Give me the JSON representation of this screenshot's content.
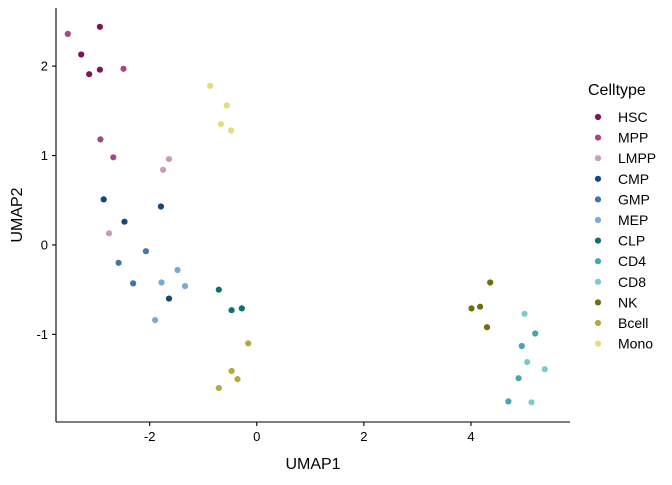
{
  "chart_data": {
    "type": "scatter",
    "title": "",
    "xlabel": "UMAP1",
    "ylabel": "UMAP2",
    "xlim": [
      -3.75,
      5.85
    ],
    "ylim": [
      -1.98,
      2.65
    ],
    "xticks": [
      -2,
      0,
      2,
      4
    ],
    "yticks": [
      -1,
      0,
      1,
      2
    ],
    "xtick_labels": [
      "-2",
      "0",
      "2",
      "4"
    ],
    "ytick_labels": [
      "-1",
      "0",
      "1",
      "2"
    ],
    "grid": false,
    "legend_title": "Celltype",
    "legend_position": "right",
    "series": [
      {
        "name": "HSC",
        "color": "#7a1556",
        "points": [
          [
            -2.93,
            2.44
          ],
          [
            -3.28,
            2.13
          ],
          [
            -2.93,
            1.96
          ],
          [
            -3.13,
            1.91
          ]
        ]
      },
      {
        "name": "MPP",
        "color": "#a94589",
        "points": [
          [
            -3.53,
            2.36
          ],
          [
            -2.49,
            1.97
          ],
          [
            -2.92,
            1.18
          ],
          [
            -2.68,
            0.98
          ]
        ]
      },
      {
        "name": "LMPP",
        "color": "#cc99bd",
        "points": [
          [
            -1.64,
            0.96
          ],
          [
            -1.75,
            0.84
          ],
          [
            -2.76,
            0.13
          ]
        ]
      },
      {
        "name": "CMP",
        "color": "#17457c",
        "points": [
          [
            -2.86,
            0.51
          ],
          [
            -1.79,
            0.43
          ],
          [
            -2.47,
            0.26
          ],
          [
            -1.64,
            -0.6
          ]
        ]
      },
      {
        "name": "GMP",
        "color": "#4474a4",
        "points": [
          [
            -2.07,
            -0.07
          ],
          [
            -2.58,
            -0.2
          ],
          [
            -2.31,
            -0.43
          ]
        ]
      },
      {
        "name": "MEP",
        "color": "#7ba9d7",
        "points": [
          [
            -1.48,
            -0.28
          ],
          [
            -1.78,
            -0.42
          ],
          [
            -1.34,
            -0.46
          ],
          [
            -1.9,
            -0.84
          ]
        ]
      },
      {
        "name": "CLP",
        "color": "#0d6f78",
        "points": [
          [
            -0.71,
            -0.5
          ],
          [
            -0.28,
            -0.71
          ],
          [
            -0.47,
            -0.73
          ]
        ]
      },
      {
        "name": "CD4",
        "color": "#48a4b0",
        "points": [
          [
            5.2,
            -0.99
          ],
          [
            4.95,
            -1.13
          ],
          [
            4.89,
            -1.49
          ],
          [
            4.7,
            -1.75
          ]
        ]
      },
      {
        "name": "CD8",
        "color": "#7ccad0",
        "points": [
          [
            5.0,
            -0.77
          ],
          [
            5.05,
            -1.31
          ],
          [
            5.38,
            -1.39
          ],
          [
            5.13,
            -1.76
          ]
        ]
      },
      {
        "name": "NK",
        "color": "#6f6d10",
        "points": [
          [
            4.36,
            -0.42
          ],
          [
            4.17,
            -0.69
          ],
          [
            4.01,
            -0.71
          ],
          [
            4.3,
            -0.92
          ]
        ]
      },
      {
        "name": "Bcell",
        "color": "#b0ab3e",
        "points": [
          [
            -0.16,
            -1.1
          ],
          [
            -0.47,
            -1.41
          ],
          [
            -0.36,
            -1.5
          ],
          [
            -0.71,
            -1.6
          ]
        ]
      },
      {
        "name": "Mono",
        "color": "#e2dc7c",
        "points": [
          [
            -0.87,
            1.78
          ],
          [
            -0.56,
            1.56
          ],
          [
            -0.67,
            1.35
          ],
          [
            -0.48,
            1.28
          ]
        ]
      }
    ]
  }
}
